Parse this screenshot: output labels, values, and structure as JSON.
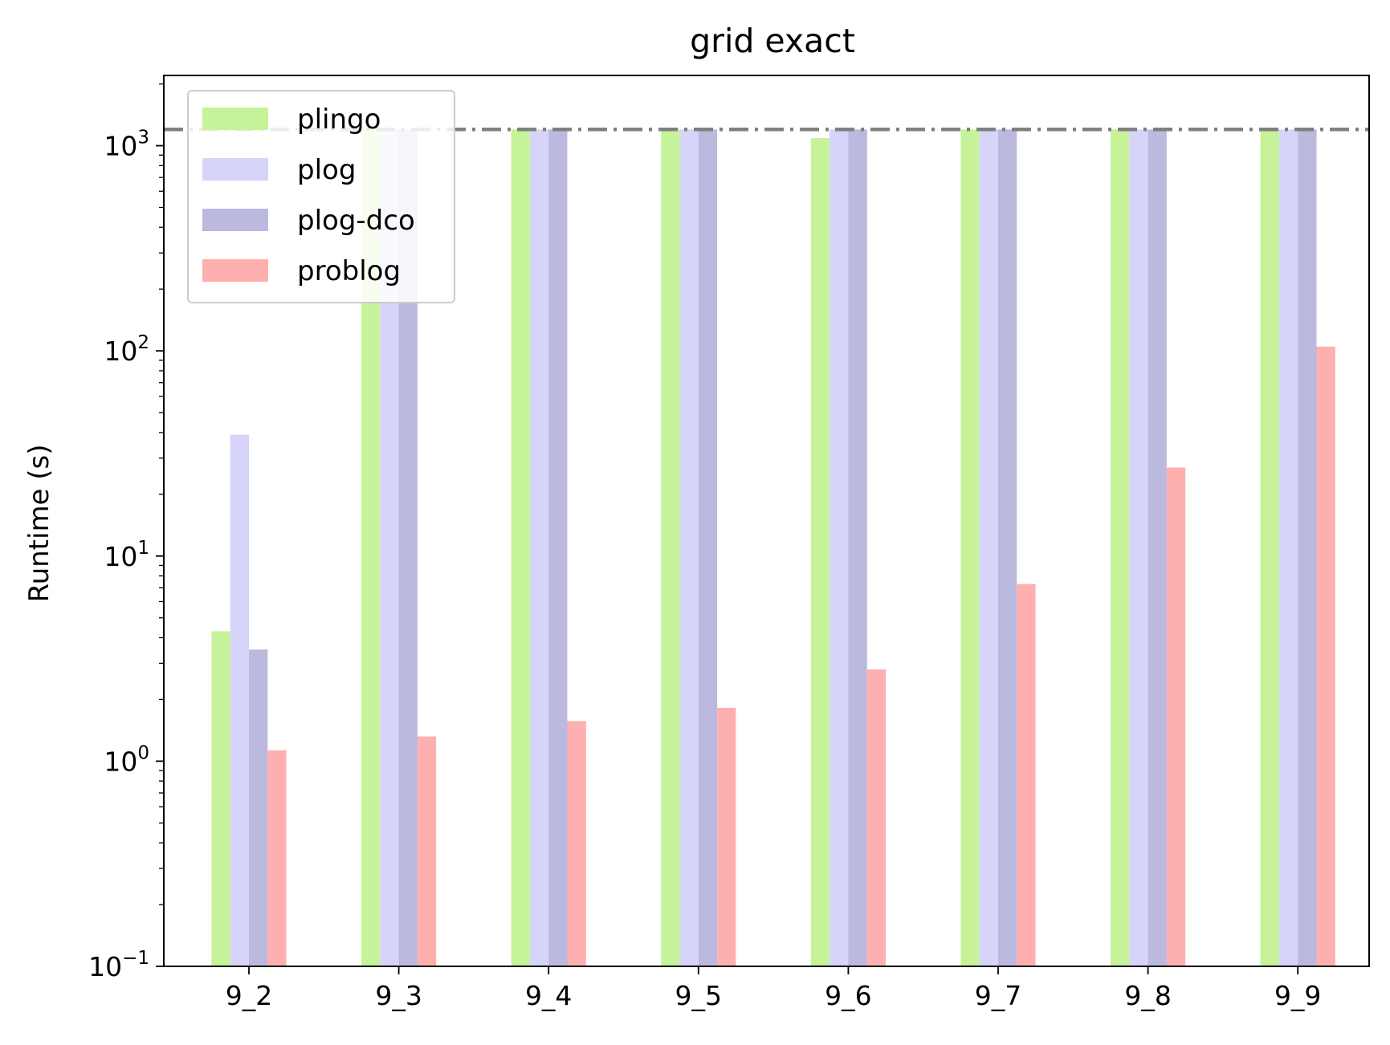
{
  "chart_data": {
    "type": "bar",
    "title": "grid exact",
    "xlabel": "",
    "ylabel": "Runtime (s)",
    "yscale": "log",
    "ylim": [
      0.1,
      2200
    ],
    "yticks": [
      {
        "value": 0.1,
        "base": "10",
        "exp": "−1"
      },
      {
        "value": 1,
        "base": "10",
        "exp": "0"
      },
      {
        "value": 10,
        "base": "10",
        "exp": "1"
      },
      {
        "value": 100,
        "base": "10",
        "exp": "2"
      },
      {
        "value": 1000,
        "base": "10",
        "exp": "3"
      }
    ],
    "categories": [
      "9_2",
      "9_3",
      "9_4",
      "9_5",
      "9_6",
      "9_7",
      "9_8",
      "9_9"
    ],
    "series": [
      {
        "name": "plingo",
        "color": "#c6f39a",
        "values": [
          4.3,
          1200,
          1200,
          1200,
          1090,
          1200,
          1200,
          1200
        ]
      },
      {
        "name": "plog",
        "color": "#d6d4f8",
        "values": [
          39,
          1200,
          1200,
          1200,
          1200,
          1200,
          1200,
          1200
        ]
      },
      {
        "name": "plog-dco",
        "color": "#bbb9dd",
        "values": [
          3.5,
          1200,
          1200,
          1200,
          1200,
          1200,
          1200,
          1200
        ]
      },
      {
        "name": "problog",
        "color": "#feb0b0",
        "values": [
          1.13,
          1.32,
          1.57,
          1.82,
          2.8,
          7.3,
          27,
          105
        ]
      }
    ],
    "timeout_line": {
      "value": 1200,
      "style": "dash-dot",
      "color": "#808080"
    },
    "grid": false,
    "legend": {
      "placement": "upper-left"
    }
  }
}
